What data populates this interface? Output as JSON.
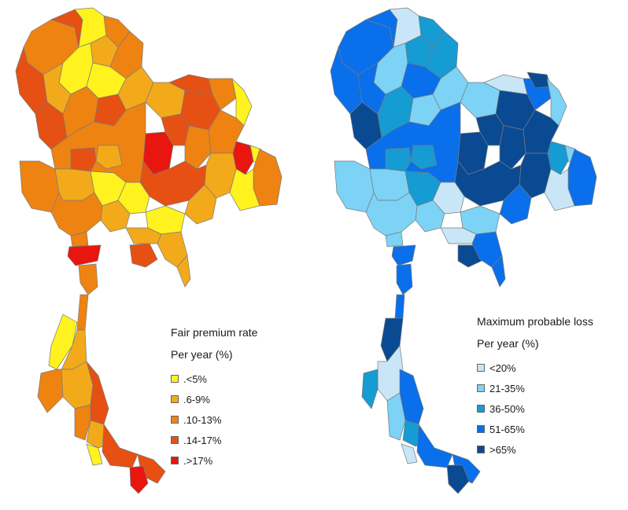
{
  "left_map": {
    "legend": {
      "title": "Fair premium rate",
      "subtitle": "Per year (%)",
      "items": [
        {
          "label": ".<5%",
          "color": "#FFF21E"
        },
        {
          "label": ".6-9%",
          "color": "#F2AA1B"
        },
        {
          "label": ".10-13%",
          "color": "#EE8312"
        },
        {
          "label": ".14-17%",
          "color": "#E65012"
        },
        {
          "label": ".>17%",
          "color": "#E8160F"
        }
      ]
    }
  },
  "right_map": {
    "legend": {
      "title": "Maximum probable loss",
      "subtitle": "Per year (%)",
      "items": [
        {
          "label": "<20%",
          "color": "#C8E6F7"
        },
        {
          "label": "21-35%",
          "color": "#7CD3F6"
        },
        {
          "label": "36-50%",
          "color": "#149CD3"
        },
        {
          "label": "51-65%",
          "color": "#0A6FEA"
        },
        {
          "label": ">65%",
          "color": "#0A4A93"
        }
      ]
    }
  }
}
